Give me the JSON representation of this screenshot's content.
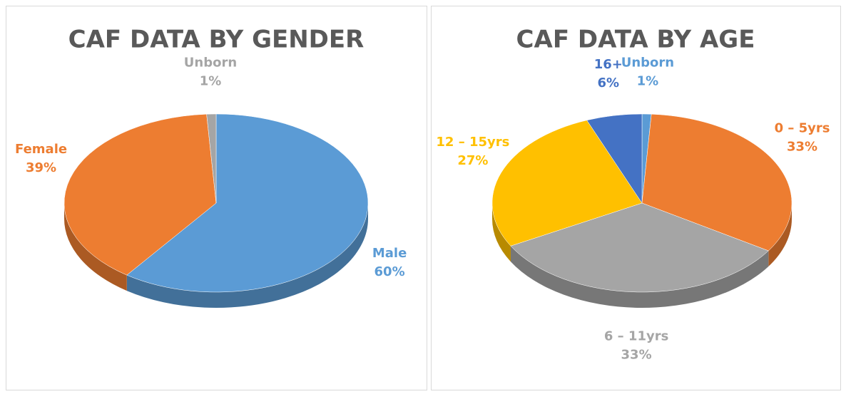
{
  "chart_data": [
    {
      "type": "pie",
      "title": "CAF DATA BY GENDER",
      "categories": [
        "Male",
        "Female",
        "Unborn"
      ],
      "values": [
        60,
        39,
        1
      ],
      "value_labels": [
        "60%",
        "39%",
        "1%"
      ],
      "colors": [
        "#5b9bd5",
        "#ed7d31",
        "#a5a5a5"
      ]
    },
    {
      "type": "pie",
      "title": "CAF DATA BY AGE",
      "categories": [
        "Unborn",
        "0 – 5yrs",
        "6 – 11yrs",
        "12 – 15yrs",
        "16+"
      ],
      "values": [
        1,
        33,
        33,
        27,
        6
      ],
      "value_labels": [
        "1%",
        "33%",
        "33%",
        "27%",
        "6%"
      ],
      "colors": [
        "#5b9bd5",
        "#ed7d31",
        "#a5a5a5",
        "#ffc000",
        "#4472c4"
      ]
    }
  ]
}
